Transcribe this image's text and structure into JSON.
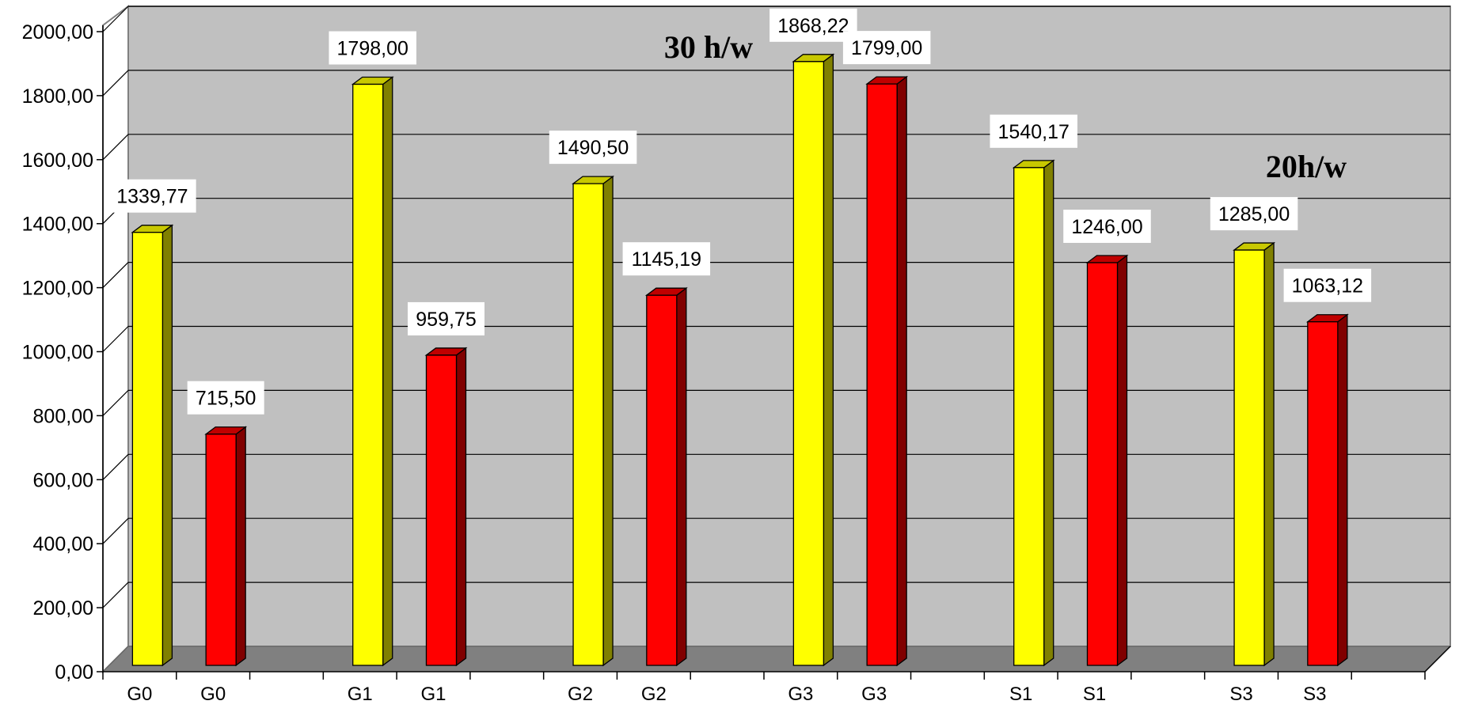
{
  "chart_data": {
    "type": "bar",
    "style": "3d-clustered-column",
    "categories": [
      "G0",
      "G0",
      "G1",
      "G1",
      "G2",
      "G2",
      "G3",
      "G3",
      "S1",
      "S1",
      "S3",
      "S3"
    ],
    "values": [
      1339.77,
      715.5,
      1798.0,
      959.75,
      1490.5,
      1145.19,
      1868.22,
      1799.0,
      1540.17,
      1246.0,
      1285.0,
      1063.12
    ],
    "value_labels": [
      "1339,77",
      "715,50",
      "1798,00",
      "959,75",
      "1490,50",
      "1145,19",
      "1868,22",
      "1799,00",
      "1540,17",
      "1246,00",
      "1285,00",
      "1063,12"
    ],
    "bar_colors": [
      "yellow",
      "red",
      "yellow",
      "red",
      "yellow",
      "red",
      "yellow",
      "red",
      "yellow",
      "red",
      "yellow",
      "red"
    ],
    "colors": {
      "yellow": "#ffff00",
      "yellow_side": "#808000",
      "yellow_top": "#c8c800",
      "red": "#ff0000",
      "red_side": "#800000",
      "red_top": "#c00000",
      "plot_back": "#c0c0c0",
      "plot_floor": "#808080",
      "gridline": "#000000"
    },
    "ylim": [
      0,
      2000
    ],
    "y_ticks": [
      0,
      200,
      400,
      600,
      800,
      1000,
      1200,
      1400,
      1600,
      1800,
      2000
    ],
    "y_tick_labels": [
      "0,00",
      "200,00",
      "400,00",
      "600,00",
      "800,00",
      "1000,00",
      "1200,00",
      "1400,00",
      "1600,00",
      "1800,00",
      "2000,00"
    ],
    "grid": true,
    "legend": "none",
    "title": "",
    "xlabel": "",
    "ylabel": "",
    "annotations": [
      {
        "text": "30 h/w",
        "near": "top-center"
      },
      {
        "text": "20h/w",
        "near": "right"
      }
    ]
  }
}
